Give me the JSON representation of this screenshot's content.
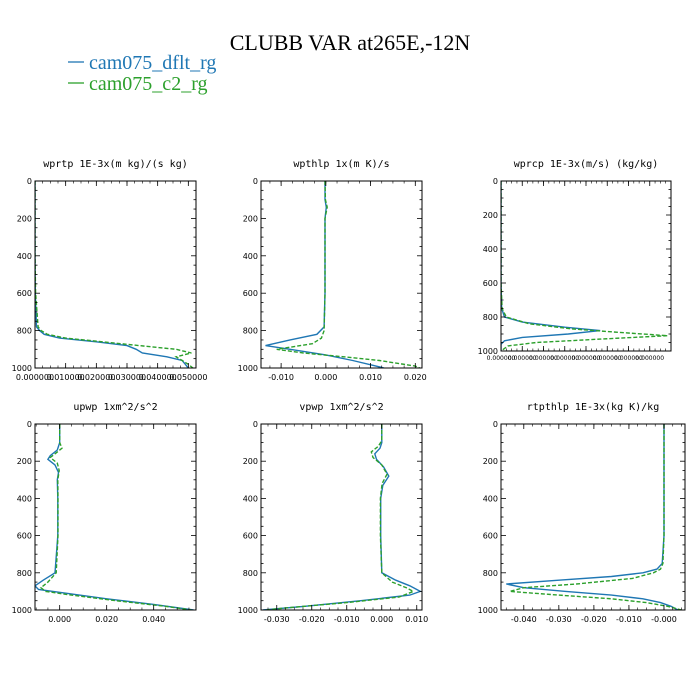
{
  "chart_data": {
    "type": "line",
    "title": "CLUBB VAR at265E,-12N",
    "legend": [
      {
        "name": "cam075_dflt_rg",
        "color": "#1f77b4",
        "style": "solid"
      },
      {
        "name": "cam075_c2_rg",
        "color": "#2ca02c",
        "style": "dashed"
      }
    ],
    "panels": [
      {
        "title": "wprtp  1E-3x(m kg)/(s kg)",
        "xlim": [
          0.0,
          0.0525
        ],
        "ylim": [
          0,
          1000
        ],
        "xticks": [
          0.0,
          0.01,
          0.02,
          0.03,
          0.04,
          0.05
        ],
        "xtick_labels": [
          "0.000000",
          "0.010000",
          "0.020000",
          "0.030000",
          "0.040000",
          "0.050000"
        ],
        "yticks": [
          0,
          200,
          400,
          600,
          800,
          1000
        ],
        "ytick_labels": [
          "0",
          "200",
          "400",
          "600",
          "800",
          "1000"
        ],
        "series": [
          {
            "name": "cam075_dflt_rg",
            "y": [
              0,
              200,
              400,
              600,
              780,
              800,
              820,
              840,
              860,
              880,
              900,
              920,
              940,
              960,
              980,
              1000
            ],
            "x": [
              0.0,
              0.0,
              0.0,
              0.0001,
              0.0005,
              0.0015,
              0.003,
              0.008,
              0.02,
              0.03,
              0.033,
              0.035,
              0.043,
              0.048,
              0.049,
              0.05
            ]
          },
          {
            "name": "cam075_c2_rg",
            "y": [
              0,
              200,
              400,
              600,
              780,
              800,
              820,
              840,
              860,
              880,
              900,
              920,
              940,
              960,
              980,
              1000
            ],
            "x": [
              0.0,
              0.0,
              0.0,
              0.0002,
              0.001,
              0.002,
              0.004,
              0.01,
              0.022,
              0.034,
              0.046,
              0.051,
              0.046,
              0.048,
              0.05,
              0.0515
            ]
          }
        ]
      },
      {
        "title": "wpthlp  1x(m K)/s",
        "xlim": [
          -0.0145,
          0.0215
        ],
        "ylim": [
          0,
          1000
        ],
        "xticks": [
          -0.01,
          0.0,
          0.01,
          0.02
        ],
        "xtick_labels": [
          "-0.010",
          "0.000",
          "0.010",
          "0.020"
        ],
        "yticks": [
          0,
          200,
          400,
          600,
          800,
          1000
        ],
        "ytick_labels": [
          "0",
          "200",
          "400",
          "600",
          "800",
          "1000"
        ],
        "series": [
          {
            "name": "cam075_dflt_rg",
            "y": [
              0,
              100,
              140,
              200,
              400,
              600,
              780,
              820,
              850,
              880,
              900,
              930,
              960,
              1000
            ],
            "x": [
              -0.0002,
              -0.0002,
              0.0001,
              -0.0002,
              -0.0002,
              -0.0002,
              -0.0004,
              -0.002,
              -0.008,
              -0.0135,
              -0.008,
              0.0,
              0.006,
              0.013
            ]
          },
          {
            "name": "cam075_c2_rg",
            "y": [
              0,
              100,
              140,
              200,
              400,
              600,
              800,
              840,
              870,
              900,
              920,
              940,
              960,
              990,
              1000
            ],
            "x": [
              -0.0002,
              -0.0001,
              0.0003,
              -0.0002,
              -0.0002,
              -0.0002,
              -0.0004,
              -0.001,
              -0.003,
              -0.011,
              -0.005,
              0.004,
              0.012,
              0.02,
              0.021
            ]
          }
        ]
      },
      {
        "title": "wprcp  1E-3x(m/s) (kg/kg)",
        "xlim": [
          0.0,
          0.0048
        ],
        "ylim": [
          0,
          1000
        ],
        "xticks": [
          0.0,
          0.0006,
          0.0012,
          0.0018,
          0.0024,
          0.003,
          0.0036,
          0.0042
        ],
        "xtick_labels": [
          "0.000000",
          "0.000000",
          "0.000000",
          "0.000000",
          "0.000000",
          "0.000000",
          "0.000000",
          "0.000000"
        ],
        "yticks": [
          0,
          200,
          400,
          600,
          800,
          1000
        ],
        "ytick_labels": [
          "0",
          "200",
          "400",
          "600",
          "800",
          "1000"
        ],
        "series": [
          {
            "name": "cam075_dflt_rg",
            "y": [
              0,
              200,
              400,
              600,
              750,
              800,
              830,
              860,
              880,
              900,
              920,
              940,
              960,
              1000
            ],
            "x": [
              0.0,
              0.0,
              0.0,
              0.0,
              2e-05,
              0.0001,
              0.0006,
              0.0018,
              0.0028,
              0.0019,
              0.0006,
              0.0001,
              0.0,
              0.0
            ]
          },
          {
            "name": "cam075_c2_rg",
            "y": [
              0,
              200,
              400,
              600,
              750,
              800,
              840,
              870,
              890,
              910,
              930,
              950,
              970,
              1000
            ],
            "x": [
              0.0,
              0.0,
              0.0,
              0.0,
              3e-05,
              0.00015,
              0.0008,
              0.002,
              0.0033,
              0.0047,
              0.0028,
              0.001,
              0.0002,
              0.0
            ]
          }
        ]
      },
      {
        "title": "upwp  1xm^2/s^2",
        "xlim": [
          -0.0105,
          0.058
        ],
        "ylim": [
          0,
          1000
        ],
        "xticks": [
          0.0,
          0.02,
          0.04
        ],
        "xtick_labels": [
          "0.000",
          "0.020",
          "0.040"
        ],
        "yticks": [
          0,
          200,
          400,
          600,
          800,
          1000
        ],
        "ytick_labels": [
          "0",
          "200",
          "400",
          "600",
          "800",
          "1000"
        ],
        "series": [
          {
            "name": "cam075_dflt_rg",
            "y": [
              0,
              100,
              140,
              170,
              190,
              220,
              260,
              300,
              400,
              600,
              800,
              840,
              870,
              890,
              910,
              940,
              970,
              1000
            ],
            "x": [
              0.0,
              0.0,
              -0.001,
              -0.004,
              -0.005,
              -0.002,
              -0.0005,
              -0.001,
              -0.0008,
              -0.0008,
              -0.002,
              -0.007,
              -0.0105,
              -0.009,
              0.003,
              0.02,
              0.04,
              0.057
            ]
          },
          {
            "name": "cam075_c2_rg",
            "y": [
              0,
              100,
              130,
              160,
              180,
              210,
              250,
              300,
              400,
              600,
              800,
              850,
              880,
              900,
              920,
              950,
              980,
              1000
            ],
            "x": [
              0.0,
              0.0,
              0.001,
              -0.002,
              -0.004,
              -0.001,
              -0.0002,
              -0.0008,
              -0.0007,
              -0.0007,
              -0.0015,
              -0.005,
              -0.008,
              -0.006,
              0.005,
              0.024,
              0.045,
              0.056
            ]
          }
        ]
      },
      {
        "title": "vpwp  1xm^2/s^2",
        "xlim": [
          -0.0345,
          0.0115
        ],
        "ylim": [
          0,
          1000
        ],
        "xticks": [
          -0.03,
          -0.02,
          -0.01,
          0.0,
          0.01
        ],
        "xtick_labels": [
          "-0.030",
          "-0.020",
          "-0.010",
          "0.000",
          "0.010"
        ],
        "yticks": [
          0,
          200,
          400,
          600,
          800,
          1000
        ],
        "ytick_labels": [
          "0",
          "200",
          "400",
          "600",
          "800",
          "1000"
        ],
        "series": [
          {
            "name": "cam075_dflt_rg",
            "y": [
              0,
              100,
              130,
              160,
              190,
              230,
              280,
              330,
              400,
              600,
              800,
              840,
              870,
              900,
              920,
              950,
              980,
              1000
            ],
            "x": [
              0.0,
              0.0,
              -0.0005,
              -0.002,
              -0.0015,
              0.0005,
              0.002,
              0.0003,
              -0.0003,
              -0.0003,
              0.0,
              0.004,
              0.008,
              0.011,
              0.008,
              -0.006,
              -0.022,
              -0.034
            ]
          },
          {
            "name": "cam075_c2_rg",
            "y": [
              0,
              90,
              120,
              150,
              180,
              220,
              270,
              320,
              400,
              600,
              800,
              850,
              880,
              900,
              930,
              960,
              990,
              1000
            ],
            "x": [
              0.0,
              0.0,
              -0.001,
              -0.003,
              -0.0025,
              0.0,
              0.0015,
              0.0001,
              -0.0004,
              -0.0004,
              0.0,
              0.003,
              0.007,
              0.009,
              0.005,
              -0.01,
              -0.028,
              -0.033
            ]
          }
        ]
      },
      {
        "title": "rtpthlp  1E-3x(kg K)/kg",
        "xlim": [
          -0.0465,
          0.006
        ],
        "ylim": [
          0,
          1000
        ],
        "xticks": [
          -0.04,
          -0.03,
          -0.02,
          -0.01,
          0.0
        ],
        "xtick_labels": [
          "-0.040",
          "-0.030",
          "-0.020",
          "-0.010",
          "-0.000"
        ],
        "yticks": [
          0,
          200,
          400,
          600,
          800,
          1000
        ],
        "ytick_labels": [
          "0",
          "200",
          "400",
          "600",
          "800",
          "1000"
        ],
        "series": [
          {
            "name": "cam075_dflt_rg",
            "y": [
              0,
              200,
              400,
              600,
              750,
              780,
              800,
              820,
              840,
              860,
              880,
              900,
              920,
              940,
              960,
              980,
              1000
            ],
            "x": [
              0.0,
              0.0,
              0.0,
              0.0,
              -0.0005,
              -0.002,
              -0.006,
              -0.015,
              -0.03,
              -0.045,
              -0.04,
              -0.028,
              -0.015,
              -0.006,
              -0.001,
              0.002,
              0.004
            ]
          },
          {
            "name": "cam075_c2_rg",
            "y": [
              0,
              200,
              400,
              600,
              750,
              780,
              800,
              830,
              860,
              880,
              900,
              920,
              940,
              960,
              980,
              1000
            ],
            "x": [
              0.0,
              0.0,
              0.0,
              0.0,
              -0.0003,
              -0.001,
              -0.003,
              -0.009,
              -0.025,
              -0.04,
              -0.044,
              -0.03,
              -0.015,
              -0.005,
              0.001,
              0.005
            ]
          }
        ]
      }
    ]
  }
}
